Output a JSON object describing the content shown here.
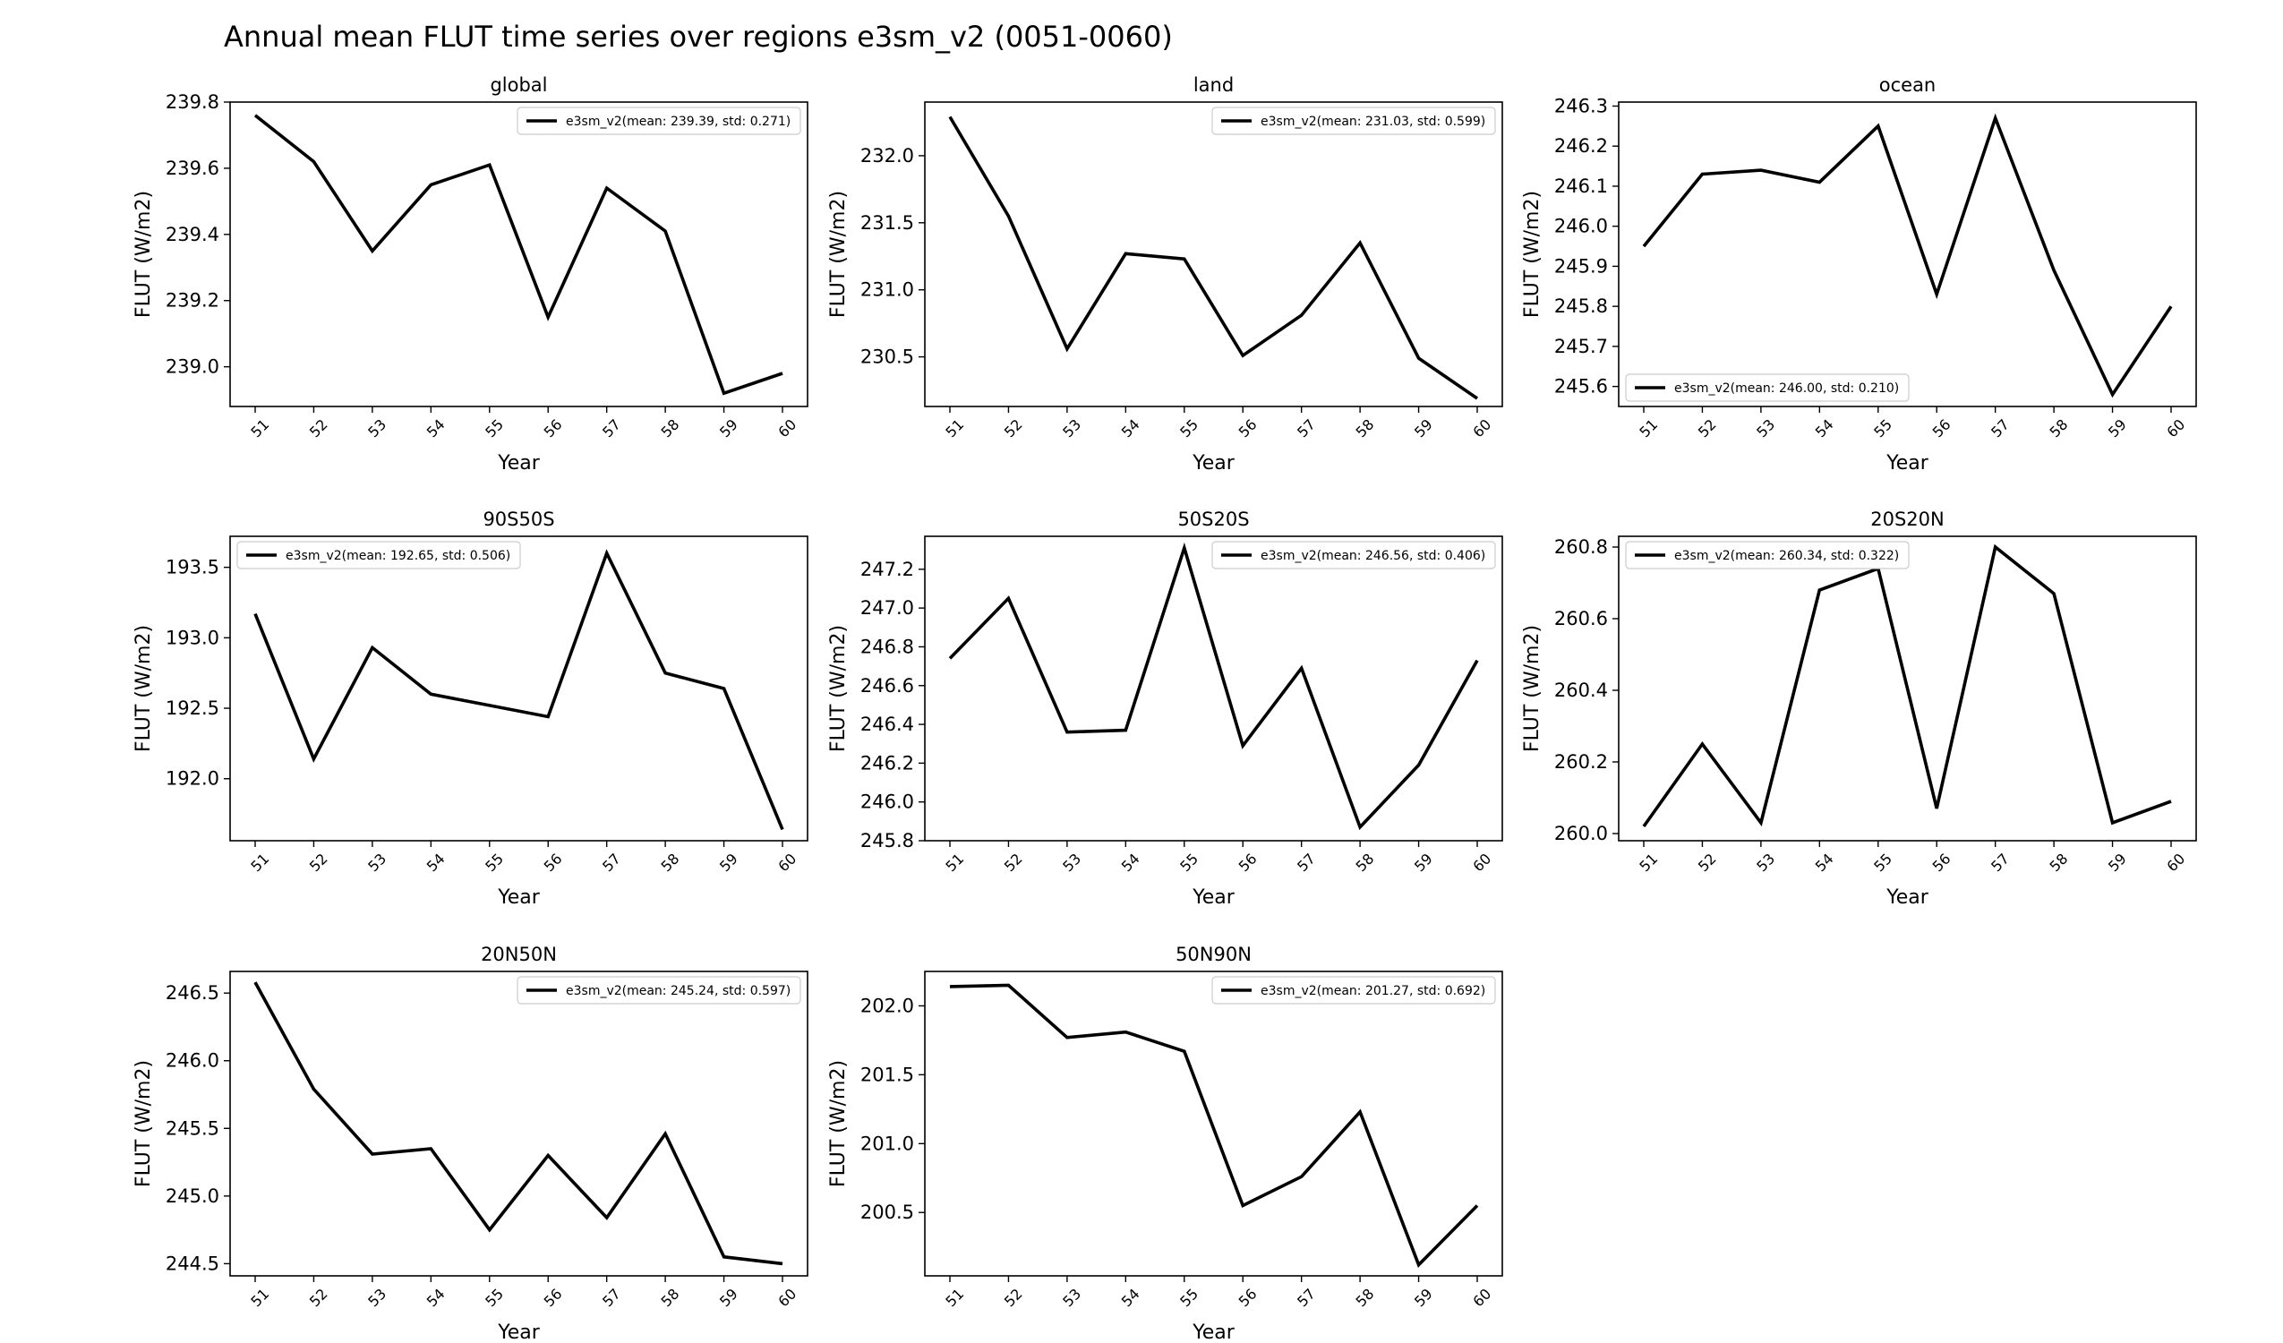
{
  "figure": {
    "title": "Annual mean FLUT time series over regions e3sm_v2 (0051-0060)"
  },
  "chart_data": [
    {
      "type": "line",
      "title": "global",
      "xlabel": "Year",
      "ylabel": "FLUT (W/m2)",
      "x": [
        "51",
        "52",
        "53",
        "54",
        "55",
        "56",
        "57",
        "58",
        "59",
        "60"
      ],
      "ylim": [
        238.88,
        239.8
      ],
      "yticks": [
        "239.0",
        "239.2",
        "239.4",
        "239.6",
        "239.8"
      ],
      "legend_loc": "upper right",
      "series": [
        {
          "name": "e3sm_v2(mean: 239.39, std: 0.271)",
          "color": "#000000",
          "values": [
            239.76,
            239.62,
            239.35,
            239.55,
            239.61,
            239.15,
            239.54,
            239.41,
            238.92,
            238.98
          ]
        }
      ]
    },
    {
      "type": "line",
      "title": "land",
      "xlabel": "Year",
      "ylabel": "FLUT (W/m2)",
      "x": [
        "51",
        "52",
        "53",
        "54",
        "55",
        "56",
        "57",
        "58",
        "59",
        "60"
      ],
      "ylim": [
        230.13,
        232.4
      ],
      "yticks": [
        "230.5",
        "231.0",
        "231.5",
        "232.0"
      ],
      "legend_loc": "upper right",
      "series": [
        {
          "name": "e3sm_v2(mean: 231.03, std: 0.599)",
          "color": "#000000",
          "values": [
            232.29,
            231.55,
            230.56,
            231.27,
            231.23,
            230.51,
            230.81,
            231.35,
            230.49,
            230.19
          ]
        }
      ]
    },
    {
      "type": "line",
      "title": "ocean",
      "xlabel": "Year",
      "ylabel": "FLUT (W/m2)",
      "x": [
        "51",
        "52",
        "53",
        "54",
        "55",
        "56",
        "57",
        "58",
        "59",
        "60"
      ],
      "ylim": [
        245.55,
        246.31
      ],
      "yticks": [
        "245.6",
        "245.7",
        "245.8",
        "245.9",
        "246.0",
        "246.1",
        "246.2",
        "246.3"
      ],
      "legend_loc": "lower left",
      "series": [
        {
          "name": "e3sm_v2(mean: 246.00, std: 0.210)",
          "color": "#000000",
          "values": [
            245.95,
            246.13,
            246.14,
            246.11,
            246.25,
            245.83,
            246.27,
            245.89,
            245.58,
            245.8
          ]
        }
      ]
    },
    {
      "type": "line",
      "title": "90S50S",
      "xlabel": "Year",
      "ylabel": "FLUT (W/m2)",
      "x": [
        "51",
        "52",
        "53",
        "54",
        "55",
        "56",
        "57",
        "58",
        "59",
        "60"
      ],
      "ylim": [
        191.56,
        193.72
      ],
      "yticks": [
        "192.0",
        "192.5",
        "193.0",
        "193.5"
      ],
      "legend_loc": "upper left",
      "series": [
        {
          "name": "e3sm_v2(mean: 192.65, std: 0.506)",
          "color": "#000000",
          "values": [
            193.17,
            192.14,
            192.93,
            192.6,
            192.52,
            192.44,
            193.6,
            192.75,
            192.64,
            191.64
          ]
        }
      ]
    },
    {
      "type": "line",
      "title": "50S20S",
      "xlabel": "Year",
      "ylabel": "FLUT (W/m2)",
      "x": [
        "51",
        "52",
        "53",
        "54",
        "55",
        "56",
        "57",
        "58",
        "59",
        "60"
      ],
      "ylim": [
        245.8,
        247.37
      ],
      "yticks": [
        "245.8",
        "246.0",
        "246.2",
        "246.4",
        "246.6",
        "246.8",
        "247.0",
        "247.2"
      ],
      "legend_loc": "upper right",
      "series": [
        {
          "name": "e3sm_v2(mean: 246.56, std: 0.406)",
          "color": "#000000",
          "values": [
            246.74,
            247.05,
            246.36,
            246.37,
            247.31,
            246.29,
            246.69,
            245.87,
            246.19,
            246.73
          ]
        }
      ]
    },
    {
      "type": "line",
      "title": "20S20N",
      "xlabel": "Year",
      "ylabel": "FLUT (W/m2)",
      "x": [
        "51",
        "52",
        "53",
        "54",
        "55",
        "56",
        "57",
        "58",
        "59",
        "60"
      ],
      "ylim": [
        259.98,
        260.83
      ],
      "yticks": [
        "260.0",
        "260.2",
        "260.4",
        "260.6",
        "260.8"
      ],
      "legend_loc": "upper left",
      "series": [
        {
          "name": "e3sm_v2(mean: 260.34, std: 0.322)",
          "color": "#000000",
          "values": [
            260.02,
            260.25,
            260.03,
            260.68,
            260.74,
            260.07,
            260.8,
            260.67,
            260.03,
            260.09
          ]
        }
      ]
    },
    {
      "type": "line",
      "title": "20N50N",
      "xlabel": "Year",
      "ylabel": "FLUT (W/m2)",
      "x": [
        "51",
        "52",
        "53",
        "54",
        "55",
        "56",
        "57",
        "58",
        "59",
        "60"
      ],
      "ylim": [
        244.41,
        246.66
      ],
      "yticks": [
        "244.5",
        "245.0",
        "245.5",
        "246.0",
        "246.5"
      ],
      "legend_loc": "upper right",
      "series": [
        {
          "name": "e3sm_v2(mean: 245.24, std: 0.597)",
          "color": "#000000",
          "values": [
            246.58,
            245.79,
            245.31,
            245.35,
            244.75,
            245.3,
            244.84,
            245.46,
            244.55,
            244.5
          ]
        }
      ]
    },
    {
      "type": "line",
      "title": "50N90N",
      "xlabel": "Year",
      "ylabel": "FLUT (W/m2)",
      "x": [
        "51",
        "52",
        "53",
        "54",
        "55",
        "56",
        "57",
        "58",
        "59",
        "60"
      ],
      "ylim": [
        200.04,
        202.25
      ],
      "yticks": [
        "200.5",
        "201.0",
        "201.5",
        "202.0"
      ],
      "legend_loc": "upper right",
      "series": [
        {
          "name": "e3sm_v2(mean: 201.27, std: 0.692)",
          "color": "#000000",
          "values": [
            202.14,
            202.15,
            201.77,
            201.81,
            201.67,
            200.55,
            200.76,
            201.23,
            200.12,
            200.55
          ]
        }
      ]
    }
  ]
}
